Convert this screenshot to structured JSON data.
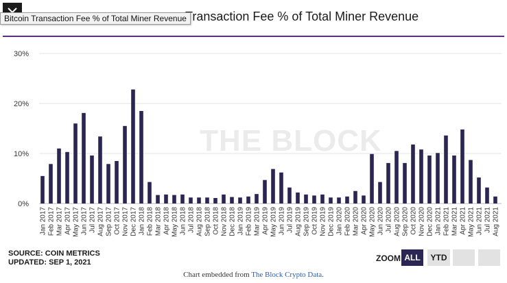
{
  "header": {
    "title": "Transaction Fee % of Total Miner Revenue",
    "tooltip": "Bitcoin Transaction Fee % of Total Miner Revenue"
  },
  "watermark": "THE BLOCK",
  "source": {
    "line1": "SOURCE: COIN METRICS",
    "line2": "UPDATED: SEP 1, 2021"
  },
  "zoom": {
    "label": "ZOOM",
    "buttons": [
      "ALL",
      "YTD",
      "",
      ""
    ],
    "active": "ALL"
  },
  "footer": {
    "prefix": "Chart embedded from ",
    "link": "The Block Crypto Data",
    "suffix": "."
  },
  "colors": {
    "bar": "#2b2553",
    "accent_rule": "#5b2d82",
    "grid": "#e3e3e3"
  },
  "chart_data": {
    "type": "bar",
    "title": "Bitcoin Transaction Fee % of Total Miner Revenue",
    "xlabel": "",
    "ylabel": "",
    "ylim": [
      0,
      30
    ],
    "yticks": [
      "0%",
      "10%",
      "20%",
      "30%"
    ],
    "grid": true,
    "categories": [
      "Jan 2017",
      "Feb 2017",
      "Mar 2017",
      "Apr 2017",
      "May 2017",
      "Jun 2017",
      "Jul 2017",
      "Aug 2017",
      "Sep 2017",
      "Oct 2017",
      "Nov 2017",
      "Dec 2017",
      "Jan 2018",
      "Feb 2018",
      "Mar 2018",
      "Apr 2018",
      "May 2018",
      "Jun 2018",
      "Jul 2018",
      "Aug 2018",
      "Sep 2018",
      "Oct 2018",
      "Nov 2018",
      "Dec 2018",
      "Jan 2019",
      "Feb 2019",
      "Mar 2019",
      "Apr 2019",
      "May 2019",
      "Jun 2019",
      "Jul 2019",
      "Aug 2019",
      "Sep 2019",
      "Oct 2019",
      "Nov 2019",
      "Dec 2019",
      "Jan 2020",
      "Feb 2020",
      "Mar 2020",
      "Apr 2020",
      "May 2020",
      "Jun 2020",
      "Jul 2020",
      "Aug 2020",
      "Sep 2020",
      "Oct 2020",
      "Nov 2020",
      "Dec 2020",
      "Jan 2021",
      "Feb 2021",
      "Mar 2021",
      "Apr 2021",
      "May 2021",
      "Jun 2021",
      "Jul 2021",
      "Aug 2021"
    ],
    "values": [
      5.5,
      7.9,
      11.0,
      10.3,
      16.0,
      18.1,
      9.6,
      13.4,
      7.9,
      8.5,
      15.5,
      22.8,
      18.5,
      4.3,
      1.7,
      1.8,
      1.7,
      1.8,
      1.2,
      1.2,
      1.2,
      1.1,
      1.8,
      1.3,
      1.2,
      1.4,
      1.9,
      4.7,
      6.9,
      6.2,
      3.2,
      2.2,
      1.8,
      1.6,
      1.8,
      1.2,
      1.2,
      1.4,
      2.5,
      1.6,
      9.9,
      4.3,
      8.1,
      10.5,
      8.1,
      11.8,
      10.8,
      9.6,
      10.1,
      13.6,
      9.6,
      14.8,
      8.7,
      5.2,
      3.2,
      1.4
    ]
  }
}
